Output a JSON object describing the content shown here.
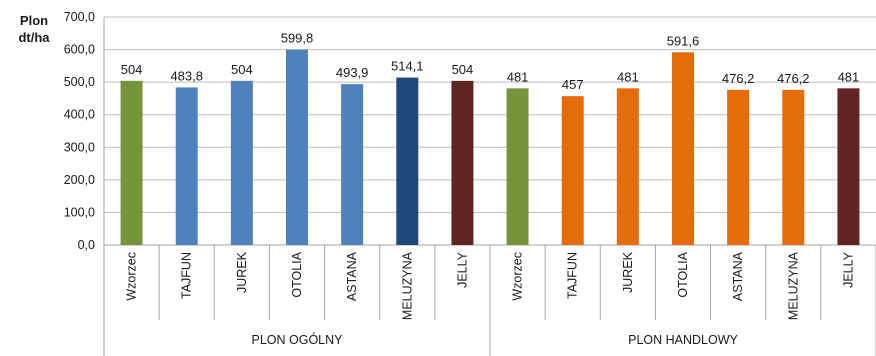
{
  "chart_data": {
    "type": "bar",
    "ylabel": "Plon\ndt/ha",
    "ylim": [
      0,
      700
    ],
    "yticks": [
      "0,0",
      "100,0",
      "200,0",
      "300,0",
      "400,0",
      "500,0",
      "600,0",
      "700,0"
    ],
    "grid": true,
    "groups": [
      "PLON OGÓLNY",
      "PLON HANDLOWY"
    ],
    "categories": [
      "Wzorzec",
      "TAJFUN",
      "JUREK",
      "OTOLIA",
      "ASTANA",
      "MELUZYNA",
      "JELLY",
      "Wzorzec",
      "TAJFUN",
      "JUREK",
      "OTOLIA",
      "ASTANA",
      "MELUZYNA",
      "JELLY"
    ],
    "values": [
      504,
      483.8,
      504,
      599.8,
      493.9,
      514.1,
      504,
      481,
      457,
      481,
      591.6,
      476.2,
      476.2,
      481
    ],
    "value_labels": [
      "504",
      "483,8",
      "504",
      "599,8",
      "493,9",
      "514,1",
      "504",
      "481",
      "457",
      "481",
      "591,6",
      "476,2",
      "476,2",
      "481"
    ],
    "bar_colors": [
      "#77933c",
      "#4f81bd",
      "#4f81bd",
      "#4f81bd",
      "#4f81bd",
      "#1f497d",
      "#632523",
      "#77933c",
      "#e46c0a",
      "#e46c0a",
      "#e46c0a",
      "#e46c0a",
      "#e46c0a",
      "#632523"
    ]
  }
}
